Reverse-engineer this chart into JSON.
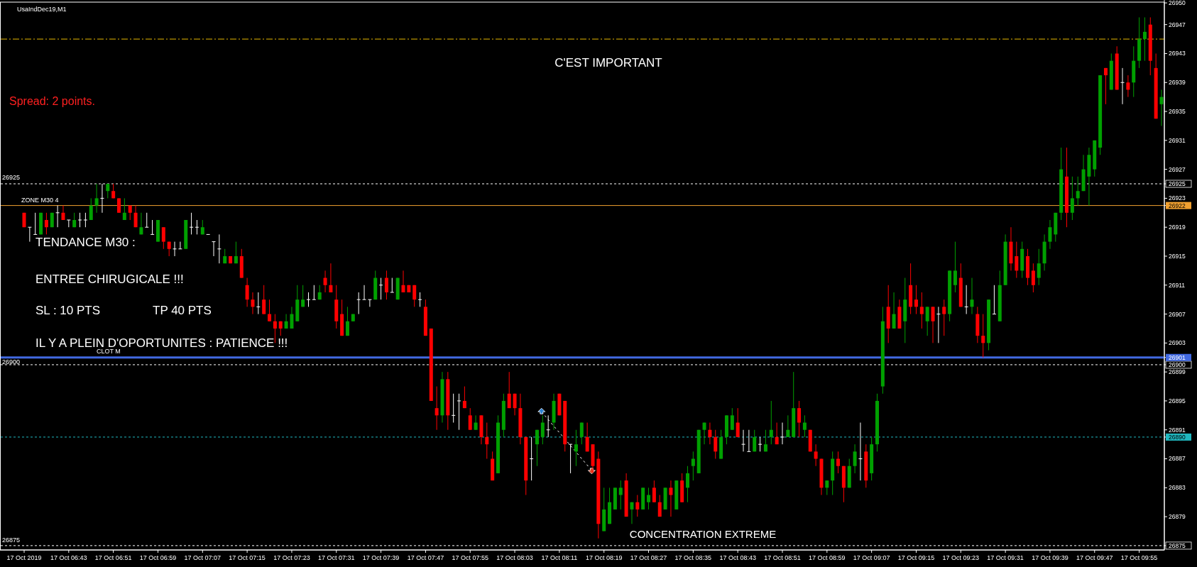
{
  "chart_data": {
    "type": "candlestick",
    "title": "UsaIndDec19,M1",
    "categories": [
      "17 Oct 2019",
      null,
      null,
      null,
      null,
      null,
      null,
      null,
      "17 Oct 06:43",
      null,
      null,
      null,
      null,
      null,
      null,
      null,
      "17 Oct 06:51",
      null,
      null,
      null,
      null,
      null,
      null,
      null,
      "17 Oct 06:59",
      null,
      null,
      null,
      null,
      null,
      null,
      null,
      "17 Oct 07:07",
      null,
      null,
      null,
      null,
      null,
      null,
      null,
      "17 Oct 07:15",
      null,
      null,
      null,
      null,
      null,
      null,
      null,
      "17 Oct 07:23",
      null,
      null,
      null,
      null,
      null,
      null,
      null,
      "17 Oct 07:31",
      null,
      null,
      null,
      null,
      null,
      null,
      null,
      "17 Oct 07:39",
      null,
      null,
      null,
      null,
      null,
      null,
      null,
      "17 Oct 07:47",
      null,
      null,
      null,
      null,
      null,
      null,
      null,
      "17 Oct 07:55",
      null,
      null,
      null,
      null,
      null,
      null,
      null,
      "17 Oct 08:03",
      null,
      null,
      null,
      null,
      null,
      null,
      null,
      "17 Oct 08:11",
      null,
      null,
      null,
      null,
      null,
      null,
      null,
      "17 Oct 08:19",
      null,
      null,
      null,
      null,
      null,
      null,
      null,
      "17 Oct 08:27",
      null,
      null,
      null,
      null,
      null,
      null,
      null,
      "17 Oct 08:35",
      null,
      null,
      null,
      null,
      null,
      null,
      null,
      "17 Oct 08:43",
      null,
      null,
      null,
      null,
      null,
      null,
      null,
      "17 Oct 08:51",
      null,
      null,
      null,
      null,
      null,
      null,
      null,
      "17 Oct 08:59",
      null,
      null,
      null,
      null,
      null,
      null,
      null,
      "17 Oct 09:07",
      null,
      null,
      null,
      null,
      null,
      null,
      null,
      "17 Oct 09:15",
      null,
      null,
      null,
      null,
      null,
      null,
      null,
      "17 Oct 09:23",
      null,
      null,
      null,
      null,
      null,
      null,
      null,
      "17 Oct 09:31",
      null,
      null,
      null,
      null,
      null,
      null,
      null,
      "17 Oct 09:39",
      null,
      null,
      null,
      null,
      null,
      null,
      null,
      "17 Oct 09:47",
      null,
      null,
      null,
      null,
      null,
      null,
      null,
      "17 Oct 09:55",
      null,
      null,
      null,
      null
    ],
    "ohlc": [
      [
        26921,
        26921,
        26919,
        26919
      ],
      [
        26919,
        26919,
        26917,
        26919
      ],
      [
        26918,
        26921,
        26918,
        26918
      ],
      [
        26918,
        26921,
        26918,
        26921
      ],
      [
        26920,
        26921,
        26918,
        26919
      ],
      [
        26919,
        26921,
        26919,
        26921
      ],
      [
        26921,
        26922,
        26919,
        26921
      ],
      [
        26921,
        26922,
        26920,
        26920
      ],
      [
        26920,
        26920,
        26919,
        26920
      ],
      [
        26919,
        26921,
        26919,
        26920
      ],
      [
        26920,
        26921,
        26919,
        26920
      ],
      [
        26920,
        26921,
        26919,
        26920
      ],
      [
        26920,
        26923,
        26920,
        26922
      ],
      [
        26922,
        26925,
        26921,
        26923
      ],
      [
        26923,
        26925,
        26921,
        26923
      ],
      [
        26924,
        26925,
        26923,
        26925
      ],
      [
        26924,
        26925,
        26923,
        26923
      ],
      [
        26923,
        26923,
        26921,
        26921
      ],
      [
        26920,
        26923,
        26920,
        26921
      ],
      [
        26922,
        26922,
        26920,
        26921
      ],
      [
        26921,
        26922,
        26919,
        26919
      ],
      [
        26918,
        26921,
        26918,
        26919
      ],
      [
        26919,
        26921,
        26919,
        26919
      ],
      [
        26918,
        26920,
        26918,
        26918
      ],
      [
        26917,
        26920,
        26917,
        26920
      ],
      [
        26919,
        26919,
        26916,
        26917
      ],
      [
        26917,
        26917,
        26915,
        26916
      ],
      [
        26916,
        26917,
        26915,
        26916
      ],
      [
        26916,
        26917,
        26916,
        26916
      ],
      [
        26916,
        26920,
        26916,
        26920
      ],
      [
        26919,
        26921,
        26918,
        26919
      ],
      [
        26919,
        26920,
        26918,
        26919
      ],
      [
        26918,
        26920,
        26918,
        26919
      ],
      [
        26918,
        26918,
        26918,
        26918
      ],
      [
        26917,
        26917,
        26915,
        26917
      ],
      [
        26916,
        26918,
        26914,
        26916
      ],
      [
        26914,
        26916,
        26914,
        26915
      ],
      [
        26915,
        26915,
        26914,
        26914
      ],
      [
        26914,
        26917,
        26914,
        26915
      ],
      [
        26915,
        26916,
        26912,
        26912
      ],
      [
        26911,
        26912,
        26908,
        26909
      ],
      [
        26909,
        26910,
        26907,
        26908
      ],
      [
        26908,
        26910,
        26907,
        26908
      ],
      [
        26909,
        26911,
        26907,
        26907
      ],
      [
        26907,
        26909,
        26906,
        26906
      ],
      [
        26906,
        26907,
        26903,
        26905
      ],
      [
        26906,
        26906,
        26904,
        26905
      ],
      [
        26905,
        26907,
        26905,
        26906
      ],
      [
        26905,
        26908,
        26905,
        26907
      ],
      [
        26906,
        26911,
        26906,
        26909
      ],
      [
        26908,
        26911,
        26908,
        26909
      ],
      [
        26909,
        26910,
        26908,
        26909
      ],
      [
        26909,
        26911,
        26909,
        26909
      ],
      [
        26909,
        26911,
        26909,
        26910
      ],
      [
        26912,
        26913,
        26910,
        26911
      ],
      [
        26911,
        26914,
        26910,
        26910
      ],
      [
        26909,
        26911,
        26905,
        26906
      ],
      [
        26907,
        26909,
        26904,
        26904
      ],
      [
        26904,
        26908,
        26904,
        26906
      ],
      [
        26906,
        26907,
        26906,
        26907
      ],
      [
        26909,
        26910,
        26907,
        26909
      ],
      [
        26909,
        26911,
        26909,
        26909
      ],
      [
        26909,
        26909,
        26908,
        26909
      ],
      [
        26909,
        26913,
        26909,
        26912
      ],
      [
        26911,
        26912,
        26909,
        26911
      ],
      [
        26912,
        26913,
        26909,
        26910
      ],
      [
        26910,
        26912,
        26910,
        26910
      ],
      [
        26909,
        26912,
        26909,
        26912
      ],
      [
        26911,
        26913,
        26910,
        26910
      ],
      [
        26911,
        26911,
        26910,
        26910
      ],
      [
        26911,
        26911,
        26908,
        26909
      ],
      [
        26909,
        26910,
        26908,
        26909
      ],
      [
        26908,
        26909,
        26904,
        26904
      ],
      [
        26905,
        26905,
        26895,
        26895
      ],
      [
        26894,
        26897,
        26891,
        26893
      ],
      [
        26893,
        26899,
        26892,
        26898
      ],
      [
        26898,
        26899,
        26891,
        26893
      ],
      [
        26893,
        26896,
        26892,
        26893
      ],
      [
        26895,
        26896,
        26891,
        26895
      ],
      [
        26895,
        26897,
        26894,
        26894
      ],
      [
        26893,
        26894,
        26891,
        26891
      ],
      [
        26891,
        26893,
        26891,
        26892
      ],
      [
        26893,
        26893,
        26889,
        26890
      ],
      [
        26890,
        26892,
        26887,
        26889
      ],
      [
        26887,
        26888,
        26884,
        26884
      ],
      [
        26885,
        26893,
        26885,
        26892
      ],
      [
        26891,
        26896,
        26890,
        26895
      ],
      [
        26896,
        26899,
        26894,
        26894
      ],
      [
        26896,
        26896,
        26893,
        26894
      ],
      [
        26894,
        26896,
        26889,
        26890
      ],
      [
        26890,
        26890,
        26882,
        26884
      ],
      [
        26887,
        26890,
        26884,
        26887
      ],
      [
        26889,
        26891,
        26886,
        26891
      ],
      [
        26890,
        26893,
        26889,
        26892
      ],
      [
        26891,
        26893,
        26890,
        26891
      ],
      [
        26892,
        26896,
        26891,
        26895
      ],
      [
        26896,
        26896,
        26893,
        26893
      ],
      [
        26895,
        26895,
        26888,
        26889
      ],
      [
        26889,
        26889,
        26885,
        26889
      ],
      [
        26888,
        26891,
        26886,
        26889
      ],
      [
        26890,
        26892,
        26889,
        26892
      ],
      [
        26890,
        26892,
        26888,
        26888
      ],
      [
        26889,
        26889,
        26885,
        26886
      ],
      [
        26887,
        26888,
        26876,
        26878
      ],
      [
        26877,
        26883,
        26877,
        26880
      ],
      [
        26878,
        26883,
        26878,
        26881
      ],
      [
        26880,
        26883,
        26880,
        26883
      ],
      [
        26882,
        26884,
        26880,
        26883
      ],
      [
        26884,
        26885,
        26879,
        26879
      ],
      [
        26880,
        26881,
        26878,
        26881
      ],
      [
        26881,
        26882,
        26879,
        26880
      ],
      [
        26880,
        26883,
        26880,
        26883
      ],
      [
        26881,
        26883,
        26880,
        26882
      ],
      [
        26883,
        26884,
        26881,
        26881
      ],
      [
        26881,
        26882,
        26879,
        26879
      ],
      [
        26880,
        26883,
        26880,
        26883
      ],
      [
        26883,
        26884,
        26879,
        26882
      ],
      [
        26880,
        26884,
        26880,
        26884
      ],
      [
        26884,
        26885,
        26881,
        26881
      ],
      [
        26883,
        26886,
        26881,
        26885
      ],
      [
        26886,
        26888,
        26884,
        26887
      ],
      [
        26885,
        26891,
        26885,
        26891
      ],
      [
        26891,
        26892,
        26889,
        26892
      ],
      [
        26891,
        26892,
        26889,
        26890
      ],
      [
        26890,
        26891,
        26887,
        26888
      ],
      [
        26887,
        26891,
        26887,
        26890
      ],
      [
        26890,
        26893,
        26889,
        26893
      ],
      [
        26891,
        26894,
        26891,
        26893
      ],
      [
        26892,
        26894,
        26890,
        26890
      ],
      [
        26889,
        26891,
        26888,
        26889
      ],
      [
        26888,
        26891,
        26888,
        26888
      ],
      [
        26888,
        26891,
        26888,
        26890
      ],
      [
        26889,
        26890,
        26888,
        26889
      ],
      [
        26888,
        26891,
        26888,
        26889
      ],
      [
        26890,
        26895,
        26889,
        26891
      ],
      [
        26890,
        26892,
        26889,
        26889
      ],
      [
        26890,
        26892,
        26889,
        26890
      ],
      [
        26890,
        26893,
        26890,
        26891
      ],
      [
        26890,
        26899,
        26890,
        26894
      ],
      [
        26894,
        26895,
        26890,
        26892
      ],
      [
        26891,
        26893,
        26890,
        26892
      ],
      [
        26891,
        26891,
        26888,
        26888
      ],
      [
        26888,
        26889,
        26886,
        26887
      ],
      [
        26887,
        26887,
        26882,
        26883
      ],
      [
        26883,
        26884,
        26882,
        26884
      ],
      [
        26884,
        26888,
        26882,
        26887
      ],
      [
        26887,
        26888,
        26885,
        26886
      ],
      [
        26886,
        26886,
        26881,
        26883
      ],
      [
        26883,
        26887,
        26883,
        26886
      ],
      [
        26886,
        26889,
        26885,
        26888
      ],
      [
        26887,
        26892,
        26884,
        26887
      ],
      [
        26888,
        26889,
        26883,
        26884
      ],
      [
        26885,
        26890,
        26884,
        26889
      ],
      [
        26889,
        26896,
        26888,
        26895
      ],
      [
        26897,
        26908,
        26896,
        26906
      ],
      [
        26908,
        26911,
        26903,
        26905
      ],
      [
        26905,
        26910,
        26905,
        26907
      ],
      [
        26908,
        26909,
        26905,
        26905
      ],
      [
        26906,
        26912,
        26903,
        26909
      ],
      [
        26911,
        26914,
        26907,
        26908
      ],
      [
        26909,
        26911,
        26907,
        26908
      ],
      [
        26908,
        26910,
        26905,
        26907
      ],
      [
        26906,
        26908,
        26904,
        26908
      ],
      [
        26908,
        26908,
        26903,
        26906
      ],
      [
        26907,
        26908,
        26903,
        26907
      ],
      [
        26908,
        26909,
        26904,
        26907
      ],
      [
        26907,
        26913,
        26906,
        26913
      ],
      [
        26911,
        26917,
        26910,
        26913
      ],
      [
        26912,
        26914,
        26908,
        26908
      ],
      [
        26908,
        26911,
        26907,
        26908
      ],
      [
        26908,
        26912,
        26907,
        26909
      ],
      [
        26907,
        26908,
        26903,
        26904
      ],
      [
        26904,
        26907,
        26901,
        26903
      ],
      [
        26903,
        26909,
        26902,
        26909
      ],
      [
        26907,
        26911,
        26907,
        26907
      ],
      [
        26906,
        26913,
        26906,
        26911
      ],
      [
        26911,
        26918,
        26911,
        26917
      ],
      [
        26917,
        26919,
        26913,
        26914
      ],
      [
        26915,
        26917,
        26912,
        26913
      ],
      [
        26913,
        26917,
        26912,
        26916
      ],
      [
        26915,
        26916,
        26911,
        26912
      ],
      [
        26913,
        26914,
        26910,
        26911
      ],
      [
        26912,
        26916,
        26911,
        26914
      ],
      [
        26914,
        26918,
        26913,
        26917
      ],
      [
        26917,
        26920,
        26916,
        26919
      ],
      [
        26918,
        26921,
        26917,
        26921
      ],
      [
        26921,
        26930,
        26920,
        26927
      ],
      [
        26926,
        26930,
        26919,
        26921
      ],
      [
        26921,
        26926,
        26920,
        26923
      ],
      [
        26923,
        26926,
        26922,
        26924
      ],
      [
        26924,
        26929,
        26924,
        26927
      ],
      [
        26926,
        26930,
        26922,
        26929
      ],
      [
        26927,
        26931,
        26926,
        26931
      ],
      [
        26930,
        26940,
        26929,
        26940
      ],
      [
        26941,
        26941,
        26936,
        26940
      ],
      [
        26938,
        26943,
        26938,
        26942
      ],
      [
        26943,
        26944,
        26938,
        26938
      ],
      [
        26939,
        26941,
        26936,
        26939
      ],
      [
        26939,
        26940,
        26937,
        26938
      ],
      [
        26939,
        26944,
        26937,
        26942
      ],
      [
        26942,
        26948,
        26941,
        26945
      ],
      [
        26945,
        26948,
        26942,
        26946
      ],
      [
        26947,
        26948,
        26940,
        26942
      ],
      [
        26941,
        26943,
        26934,
        26934
      ],
      [
        26936,
        26938,
        26933,
        26937
      ]
    ],
    "ylim": [
      26874.4,
      26950.4
    ],
    "yticks": [
      26875,
      26879,
      26883,
      26887,
      26890,
      26891,
      26895,
      26899,
      26900,
      26901,
      26903,
      26907,
      26911,
      26915,
      26919,
      26922,
      26923,
      26925,
      26927,
      26931,
      26935,
      26939,
      26943,
      26947,
      26950
    ],
    "ref_lines": [
      {
        "axis": "y",
        "value": 26945,
        "color": "#e6b800",
        "line_style": "dotted"
      },
      {
        "axis": "y",
        "value": 26925,
        "label": "26925",
        "color": "#ffffff",
        "line_style": "dashed"
      },
      {
        "axis": "y",
        "value": 26922,
        "label": "ZONE M30 4",
        "color": "#f0a030",
        "line_style": "solid"
      },
      {
        "axis": "y",
        "value": 26901,
        "label": "CLOT M",
        "color": "#4169e1",
        "line_style": "solid"
      },
      {
        "axis": "y",
        "value": 26900,
        "label": "26900",
        "color": "#ffffff",
        "line_style": "dashed"
      },
      {
        "axis": "y",
        "value": 26890,
        "color": "#20b8c0",
        "line_style": "dashed"
      },
      {
        "axis": "y",
        "value": 26875,
        "label": "26875",
        "color": "#ffffff",
        "line_style": "dashed"
      }
    ],
    "annotations": [
      "C'EST IMPORTANT",
      "Spread: 2 points.",
      "TENDANCE M30 :",
      "ENTREE CHIRUGICALE !!!",
      "SL : 10 PTS",
      "TP 40 PTS",
      "IL Y A PLEIN D'OPORTUNITES : PATIENCE !!!",
      "CONCENTRATION EXTREME"
    ],
    "grid": false
  }
}
